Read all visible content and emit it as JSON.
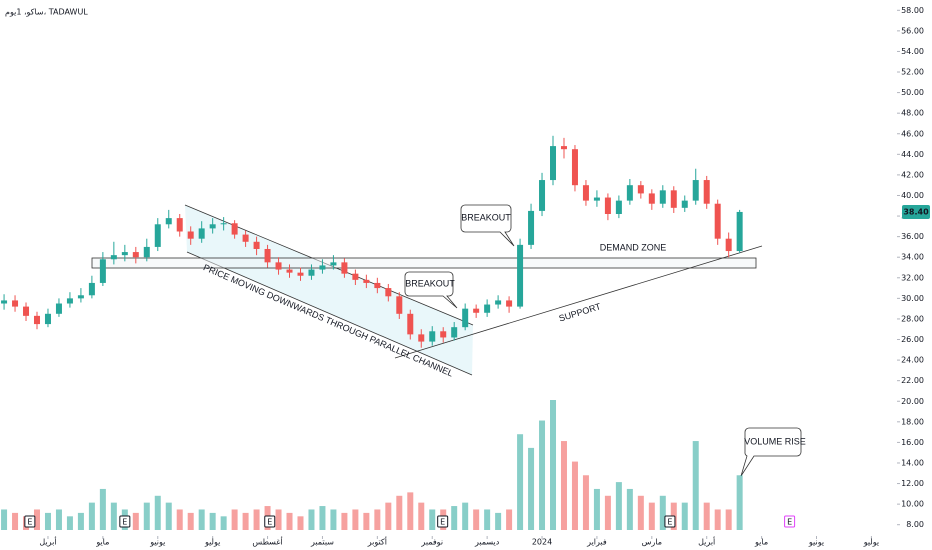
{
  "chart_data": {
    "type": "candlestick",
    "title": "ساكو، 1يوم، TADAWUL",
    "up_color": "#26a69a",
    "down_color": "#ef5350",
    "x": [
      -0.8,
      -0.6,
      -0.4,
      -0.2,
      0,
      0.2,
      0.4,
      0.6,
      0.8,
      1,
      1.2,
      1.4,
      1.6,
      1.8,
      2,
      2.2,
      2.4,
      2.6,
      2.8,
      3,
      3.2,
      3.4,
      3.6,
      3.8,
      4,
      4.2,
      4.4,
      4.6,
      4.8,
      5,
      5.2,
      5.4,
      5.6,
      5.8,
      6,
      6.2,
      6.4,
      6.6,
      6.8,
      7,
      7.2,
      7.4,
      7.6,
      7.8,
      8,
      8.2,
      8.4,
      8.6,
      8.8,
      9,
      9.2,
      9.4,
      9.6,
      9.8,
      10,
      10.2,
      10.4,
      10.6,
      10.8,
      11,
      11.2,
      11.4,
      11.6,
      11.8,
      12,
      12.2,
      12.4,
      12.6
    ],
    "open": [
      29.5,
      29.8,
      29.2,
      28.3,
      27.5,
      28.5,
      29.5,
      30,
      30.3,
      31.5,
      33.8,
      34.2,
      34.5,
      34,
      35,
      37.2,
      37.8,
      36.5,
      35.8,
      36.8,
      37.2,
      37.3,
      36.2,
      35.5,
      34.8,
      33.5,
      32.8,
      32.5,
      32.2,
      32.8,
      33.2,
      33.5,
      32.4,
      31.8,
      31.5,
      31,
      30.2,
      28.5,
      26.5,
      25.8,
      26.8,
      26.2,
      27.2,
      29,
      28.6,
      29.4,
      29.8,
      29.2,
      35.2,
      38.5,
      41.5,
      44.8,
      44.5,
      41,
      39.5,
      39.8,
      38.2,
      39.5,
      41,
      40.2,
      39.2,
      40.5,
      38.8,
      39.5,
      41.5,
      39.2,
      35.8,
      34.6
    ],
    "high": [
      30.4,
      30.3,
      29.6,
      28.7,
      29,
      30,
      30.6,
      31,
      32.2,
      34.5,
      35.5,
      35.2,
      35,
      35.8,
      37.8,
      38.6,
      38.2,
      37,
      37.5,
      37.8,
      37.9,
      37.6,
      36.6,
      36,
      35.2,
      34,
      33.3,
      33,
      33.3,
      33.8,
      34.2,
      33.9,
      32.8,
      32.3,
      32,
      31.4,
      30.6,
      28.9,
      27,
      27.3,
      27.2,
      27.7,
      29.5,
      29.4,
      29.9,
      30.3,
      30.2,
      35.8,
      39.2,
      42.2,
      45.8,
      45.6,
      44.9,
      41.5,
      40.5,
      40.2,
      40,
      41.6,
      41.4,
      40.6,
      41,
      40.9,
      40,
      42.6,
      41.9,
      39.6,
      36.4,
      38.6
    ],
    "low": [
      28.9,
      28.7,
      27.8,
      27,
      27.2,
      28.2,
      29.1,
      29.6,
      30,
      31.2,
      33.3,
      33.6,
      33.4,
      33.6,
      34.6,
      36.8,
      36,
      35.2,
      35.4,
      36.3,
      36.6,
      35.8,
      35,
      34.2,
      33,
      32.3,
      32,
      31.7,
      31.8,
      32.4,
      32.8,
      32,
      31.3,
      31,
      30.5,
      29.7,
      28,
      26,
      25.2,
      25.4,
      25.7,
      25.9,
      26.9,
      28.1,
      28.2,
      29,
      28.6,
      29,
      34.8,
      38,
      41,
      43.6,
      40.4,
      39,
      38.9,
      37.6,
      37.8,
      39.1,
      39.7,
      38.6,
      38.8,
      38.3,
      38.4,
      39.1,
      38.7,
      35.2,
      34,
      34.4
    ],
    "close": [
      29.8,
      29.2,
      28.3,
      27.5,
      28.5,
      29.5,
      30,
      30.3,
      31.5,
      33.8,
      34.2,
      34.5,
      34,
      35,
      37.2,
      37.8,
      36.5,
      35.8,
      36.8,
      37.2,
      37.3,
      36.2,
      35.5,
      34.8,
      33.5,
      32.8,
      32.5,
      32.2,
      32.8,
      33.2,
      33.5,
      32.4,
      31.8,
      31.5,
      31,
      30.2,
      28.5,
      26.5,
      25.8,
      26.8,
      26.2,
      27.2,
      29,
      28.6,
      29.4,
      29.8,
      29.2,
      35.2,
      38.5,
      41.5,
      44.8,
      44.5,
      41,
      39.5,
      39.8,
      38.2,
      39.5,
      41,
      40.2,
      39.2,
      40.5,
      38.8,
      39.5,
      41.5,
      39.2,
      35.8,
      34.6,
      38.4
    ],
    "volume": [
      3,
      2.5,
      2,
      3,
      2.5,
      3,
      2,
      2.5,
      4,
      6,
      4,
      3,
      2.5,
      4,
      5,
      4,
      3,
      2.5,
      3,
      2.5,
      2,
      3,
      2.5,
      3,
      3.5,
      3,
      2.5,
      2,
      3,
      3.5,
      3,
      2.5,
      3,
      2.5,
      3,
      4,
      5,
      5.5,
      4,
      3,
      3,
      3.5,
      4,
      3,
      3,
      2.5,
      3,
      14,
      12,
      16,
      19,
      13,
      10,
      8,
      6,
      5,
      7,
      6,
      5,
      4,
      5,
      4,
      4,
      13,
      4,
      3,
      3,
      8
    ],
    "last_price": {
      "value": 38.4,
      "label": "38.40"
    },
    "xlim": [
      -0.874,
      15.43
    ],
    "xticks": [
      {
        "value": 0,
        "label": "أبريل"
      },
      {
        "value": 1,
        "label": "مايو"
      },
      {
        "value": 2,
        "label": "يونيو"
      },
      {
        "value": 3,
        "label": "يوليو"
      },
      {
        "value": 4,
        "label": "أغسطس"
      },
      {
        "value": 5,
        "label": "سبتمبر"
      },
      {
        "value": 6,
        "label": "أكتوبر"
      },
      {
        "value": 7,
        "label": "نوفمبر"
      },
      {
        "value": 8,
        "label": "ديسمبر"
      },
      {
        "value": 9,
        "label": "2024"
      },
      {
        "value": 10,
        "label": "فبراير"
      },
      {
        "value": 11,
        "label": "مارس"
      },
      {
        "value": 12,
        "label": "أبريل"
      },
      {
        "value": 13,
        "label": "مايو"
      },
      {
        "value": 14,
        "label": "يونيو"
      },
      {
        "value": 15,
        "label": "يوليو"
      }
    ],
    "ylim": [
      7,
      59
    ],
    "yticks": [
      {
        "value": 8,
        "label": "8.00"
      },
      {
        "value": 10,
        "label": "10.00"
      },
      {
        "value": 12,
        "label": "12.00"
      },
      {
        "value": 14,
        "label": "14.00"
      },
      {
        "value": 16,
        "label": "16.00"
      },
      {
        "value": 18,
        "label": "18.00"
      },
      {
        "value": 20,
        "label": "20.00"
      },
      {
        "value": 22,
        "label": "22.00"
      },
      {
        "value": 24,
        "label": "24.00"
      },
      {
        "value": 26,
        "label": "26.00"
      },
      {
        "value": 28,
        "label": "28.00"
      },
      {
        "value": 30,
        "label": "30.00"
      },
      {
        "value": 32,
        "label": "32.00"
      },
      {
        "value": 34,
        "label": "34.00"
      },
      {
        "value": 36,
        "label": "36.00"
      },
      {
        "value": 38,
        "label": "38.00"
      },
      {
        "value": 40,
        "label": "40.00"
      },
      {
        "value": 42,
        "label": "42.00"
      },
      {
        "value": 44,
        "label": "44.00"
      },
      {
        "value": 46,
        "label": "46.00"
      },
      {
        "value": 48,
        "label": "48.00"
      },
      {
        "value": 50,
        "label": "50.00"
      },
      {
        "value": 52,
        "label": "52.00"
      },
      {
        "value": 54,
        "label": "54.00"
      },
      {
        "value": 56,
        "label": "56.00"
      },
      {
        "value": 58,
        "label": "58.00"
      }
    ],
    "events": [
      {
        "x": -0.33,
        "label": "E",
        "color": "#131722"
      },
      {
        "x": 1.4,
        "label": "E",
        "color": "#131722"
      },
      {
        "x": 4.04,
        "label": "E",
        "color": "#131722"
      },
      {
        "x": 7.19,
        "label": "E",
        "color": "#131722"
      },
      {
        "x": 11.33,
        "label": "E",
        "color": "#131722"
      },
      {
        "x": 13.51,
        "label": "E",
        "color": "#e040fb"
      }
    ],
    "annotations": [
      "BREAKOUT",
      "BREAKOUT",
      "DEMAND ZONE",
      "SUPPORT",
      "PRICE MOVING DOWNWARDS THROUGH PARALLEL CHANNEL",
      "VOLUME RISE"
    ]
  }
}
